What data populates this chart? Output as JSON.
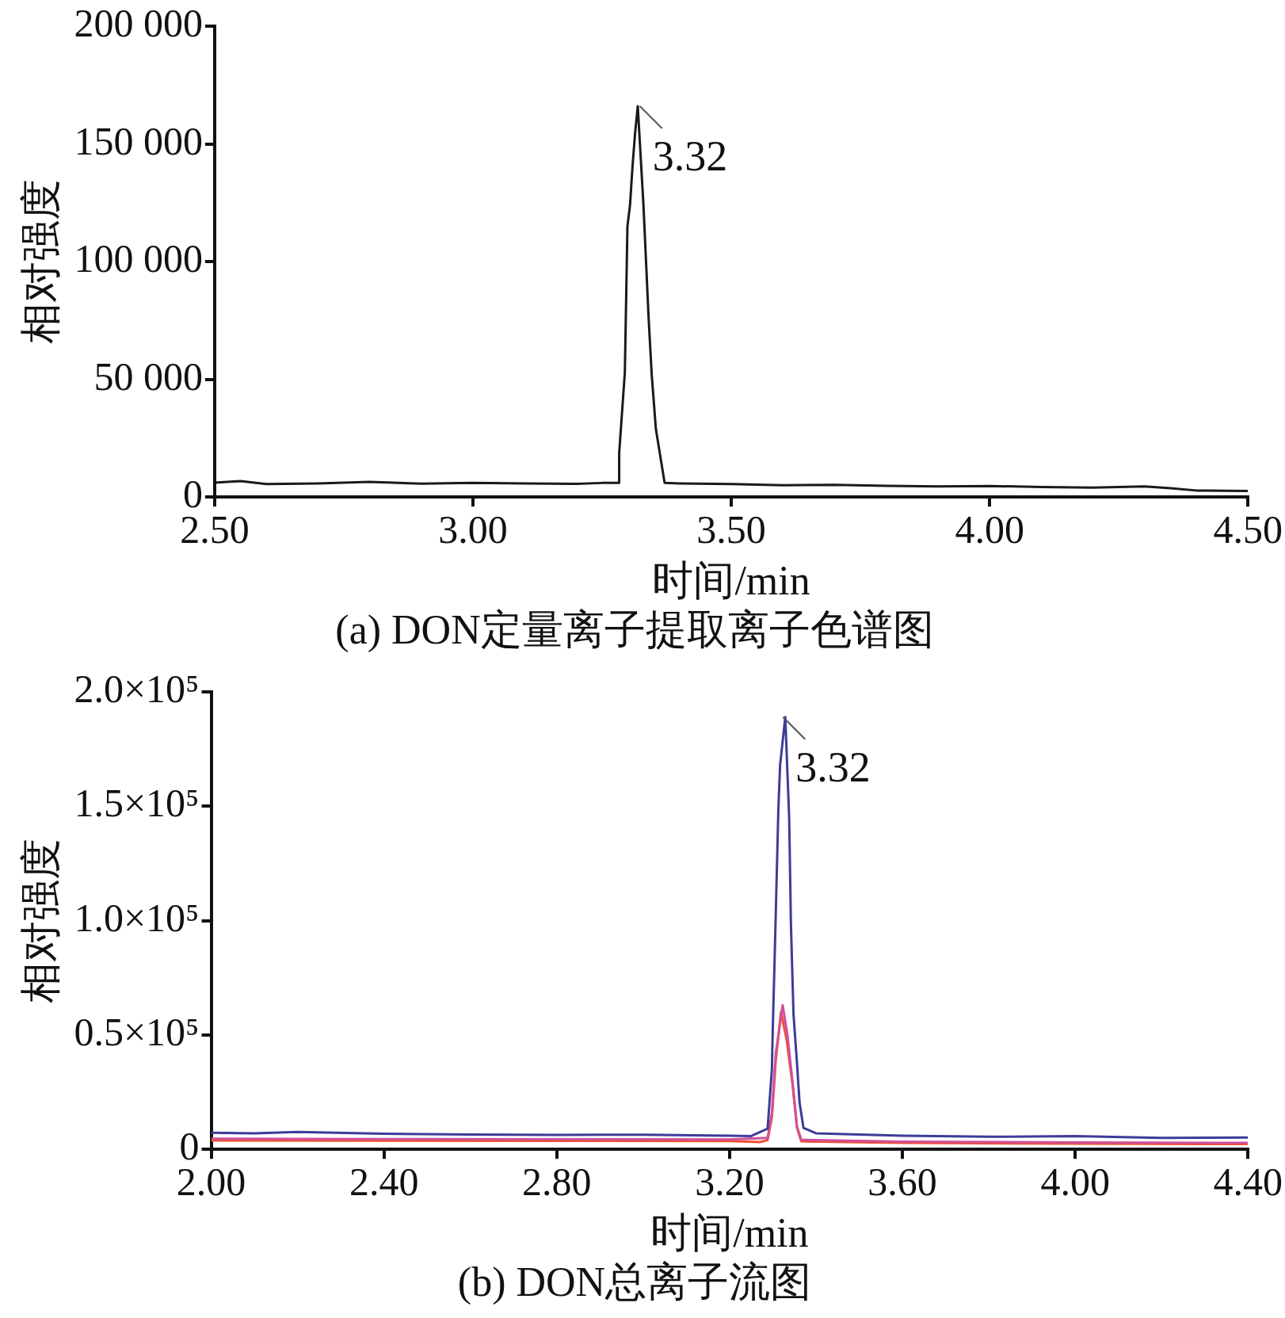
{
  "chart_data": [
    {
      "type": "line",
      "title": "(a) DON定量离子提取离子色谱图",
      "xlabel": "时间/min",
      "ylabel": "相对强度",
      "marker": "none",
      "grid": false,
      "legend": false,
      "xlim": [
        2.5,
        4.5
      ],
      "xticks": [
        {
          "value": 2.5,
          "label": "2.50"
        },
        {
          "value": 3,
          "label": "3.00"
        },
        {
          "value": 3.5,
          "label": "3.50"
        },
        {
          "value": 4,
          "label": "4.00"
        },
        {
          "value": 4.5,
          "label": "4.50"
        }
      ],
      "ylim": [
        0,
        200000
      ],
      "yticks": [
        0,
        {
          "value": 50000,
          "label": "50 000"
        },
        {
          "value": 100000,
          "label": "100 000"
        },
        {
          "value": 150000,
          "label": "150 000"
        },
        {
          "value": 200000,
          "label": "200 000"
        }
      ],
      "annotations": [
        {
          "text": "3.32",
          "x": 3.32,
          "y": 166000
        }
      ],
      "series": [
        {
          "color": "#1a1a1a",
          "x": [
            2.5,
            2.55,
            2.6,
            2.7,
            2.8,
            2.9,
            3.0,
            3.1,
            3.2,
            3.25,
            3.283,
            3.283,
            3.294,
            3.299,
            3.304,
            3.309,
            3.314,
            3.319,
            3.33,
            3.34,
            3.346,
            3.354,
            3.371,
            3.4,
            3.5,
            3.6,
            3.7,
            3.8,
            3.9,
            4.0,
            4.1,
            4.2,
            4.3,
            4.35,
            4.4,
            4.5
          ],
          "values": [
            6100,
            6800,
            5500,
            5800,
            6500,
            5700,
            6000,
            5800,
            5600,
            6000,
            6000,
            18600,
            53000,
            115000,
            124000,
            141000,
            155000,
            166000,
            124000,
            76000,
            52000,
            29000,
            6000,
            5800,
            5500,
            5000,
            5200,
            4800,
            4500,
            4700,
            4300,
            4000,
            4500,
            3800,
            2800,
            2600
          ]
        }
      ]
    },
    {
      "type": "line",
      "title": "(b) DON总离子流图",
      "xlabel": "时间/min",
      "ylabel": "相对强度",
      "marker": "none",
      "grid": false,
      "legend": false,
      "xlim": [
        2.0,
        4.4
      ],
      "xticks": [
        {
          "value": 2.0,
          "label": "2.00"
        },
        {
          "value": 2.4,
          "label": "2.40"
        },
        {
          "value": 2.8,
          "label": "2.80"
        },
        {
          "value": 3.2,
          "label": "3.20"
        },
        {
          "value": 3.6,
          "label": "3.60"
        },
        {
          "value": 4.0,
          "label": "4.00"
        },
        {
          "value": 4.4,
          "label": "4.40"
        }
      ],
      "ylim": [
        0,
        200000
      ],
      "yticks": [
        0,
        {
          "value": 50000,
          "label": "0.5×10⁵"
        },
        {
          "value": 100000,
          "label": "1.0×10⁵"
        },
        {
          "value": 150000,
          "label": "1.5×10⁵"
        },
        {
          "value": 200000,
          "label": "2.0×10⁵"
        }
      ],
      "annotations": [
        {
          "text": "3.32",
          "x": 3.32,
          "y": 189000
        }
      ],
      "series": [
        {
          "color": "#3c3c99",
          "x": [
            2.0,
            2.1,
            2.2,
            2.4,
            2.6,
            2.8,
            3.0,
            3.2,
            3.25,
            3.288,
            3.298,
            3.3,
            3.305,
            3.313,
            3.317,
            3.329,
            3.338,
            3.342,
            3.348,
            3.356,
            3.362,
            3.371,
            3.4,
            3.6,
            3.8,
            4.0,
            4.2,
            4.4
          ],
          "values": [
            7300,
            7000,
            7600,
            6800,
            6500,
            6300,
            6400,
            6000,
            5800,
            9000,
            35000,
            52000,
            88000,
            149000,
            168000,
            189000,
            145000,
            99000,
            59000,
            38000,
            20500,
            9400,
            7000,
            6000,
            5500,
            5800,
            5000,
            5200
          ]
        },
        {
          "color": "#d0509a",
          "x": [
            2.0,
            2.4,
            2.8,
            3.2,
            3.288,
            3.298,
            3.307,
            3.323,
            3.334,
            3.346,
            3.356,
            3.366,
            3.6,
            4.0,
            4.4
          ],
          "values": [
            4700,
            4500,
            4400,
            4300,
            5000,
            16000,
            42000,
            63000,
            50000,
            29000,
            10000,
            4200,
            3400,
            3000,
            2800
          ]
        },
        {
          "color": "#f05030",
          "x": [
            2.0,
            2.4,
            2.8,
            3.2,
            3.27,
            3.288,
            3.298,
            3.307,
            3.319,
            3.332,
            3.346,
            3.356,
            3.366,
            3.6,
            4.0,
            4.4
          ],
          "values": [
            3900,
            3800,
            3700,
            3600,
            3200,
            4000,
            14000,
            39000,
            60000,
            48000,
            28000,
            9400,
            3500,
            2800,
            2500,
            2300
          ]
        }
      ]
    }
  ]
}
